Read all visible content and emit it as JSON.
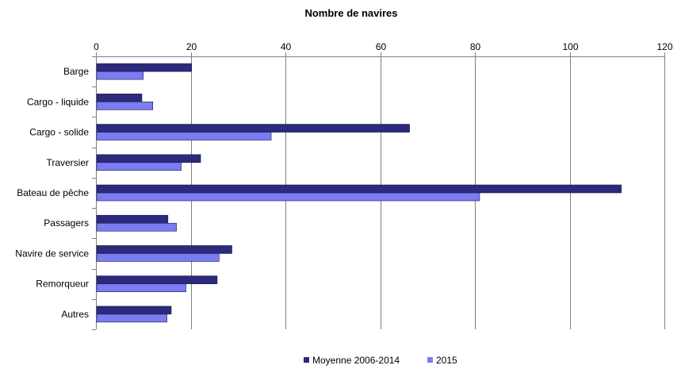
{
  "chart_data": {
    "type": "bar",
    "orientation": "horizontal",
    "title": "Nombre de navires",
    "xlabel": "",
    "ylabel": "",
    "categories": [
      "Barge",
      "Cargo - liquide",
      "Cargo - solide",
      "Traversier",
      "Bateau de pêche",
      "Passagers",
      "Navire de service",
      "Remorqueur",
      "Autres"
    ],
    "series": [
      {
        "name": "Moyenne 2006-2014",
        "color": "#2b2a7c",
        "values": [
          20.2,
          9.7,
          66.2,
          22.1,
          110.9,
          15.2,
          28.7,
          25.6,
          15.9
        ]
      },
      {
        "name": "2015",
        "color": "#7b7bf2",
        "values": [
          10,
          12,
          37,
          18,
          81,
          17,
          26,
          19,
          15
        ]
      }
    ],
    "xlim": [
      0,
      120
    ],
    "xticks": [
      "0",
      "20",
      "40",
      "60",
      "80",
      "100",
      "120"
    ],
    "axis_position": "top",
    "grid": "vertical",
    "legend_position": "bottom"
  }
}
